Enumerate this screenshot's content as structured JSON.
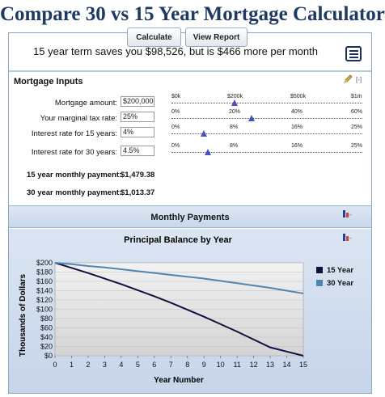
{
  "page_title": "Compare 30 vs 15 Year Mortgage Calculator",
  "toolbar": {
    "calculate_label": "Calculate",
    "view_report_label": "View Report"
  },
  "summary_text": "15 year term saves you $98,526, but is $466 more per month",
  "inputs": {
    "title": "Mortgage Inputs",
    "collapse_label": "[-]",
    "rows": [
      {
        "label": "Mortgage amount:",
        "value": "$200,000",
        "ticks": [
          "$0k",
          "$200k",
          "$500k",
          "$1m"
        ],
        "thumb": 0.33
      },
      {
        "label": "Your marginal tax rate:",
        "value": "25%",
        "ticks": [
          "0%",
          "20%",
          "40%",
          "60%"
        ],
        "thumb": 0.42
      },
      {
        "label": "Interest rate for 15 years:",
        "value": "4%",
        "ticks": [
          "0%",
          "8%",
          "16%",
          "25%"
        ],
        "thumb": 0.17
      },
      {
        "label": "Interest rate for 30 years:",
        "value": "4.5%",
        "ticks": [
          "0%",
          "8%",
          "16%",
          "25%"
        ],
        "thumb": 0.19
      }
    ]
  },
  "results": {
    "monthly_15_label": "15 year monthly payment:",
    "monthly_15_value": "$1,479.38",
    "monthly_30_label": "30 year monthly payment:",
    "monthly_30_value": "$1,013.37"
  },
  "monthly_payments_title": "Monthly Payments",
  "colors": {
    "series_15": "#10123e",
    "series_30": "#4f86b0",
    "title": "#1f3a62",
    "thumb": "#4a4fbf"
  },
  "chart_data": {
    "type": "line",
    "title": "Principal Balance by Year",
    "xlabel": "Year Number",
    "ylabel": "Thousands of Dollars",
    "xlim": [
      0,
      15
    ],
    "ylim": [
      0,
      200
    ],
    "x_ticks": [
      "0",
      "1",
      "2",
      "3",
      "4",
      "5",
      "6",
      "7",
      "8",
      "9",
      "10",
      "11",
      "12",
      "13",
      "14",
      "15"
    ],
    "y_ticks": [
      "$0",
      "$20",
      "$40",
      "$60",
      "$80",
      "$100",
      "$120",
      "$140",
      "$160",
      "$180",
      "$200"
    ],
    "grid": true,
    "legend_position": "right",
    "x": [
      0,
      1,
      2,
      3,
      4,
      5,
      6,
      7,
      8,
      9,
      10,
      11,
      12,
      13,
      14,
      15
    ],
    "series": [
      {
        "name": "15 Year",
        "values": [
          200,
          189,
          178,
          166,
          154,
          141,
          128,
          114,
          99,
          84,
          68,
          52,
          35,
          18,
          9,
          0
        ]
      },
      {
        "name": "30 Year",
        "values": [
          200,
          197,
          193,
          190,
          186,
          182,
          178,
          174,
          170,
          166,
          161,
          156,
          151,
          146,
          140,
          134
        ]
      }
    ]
  }
}
